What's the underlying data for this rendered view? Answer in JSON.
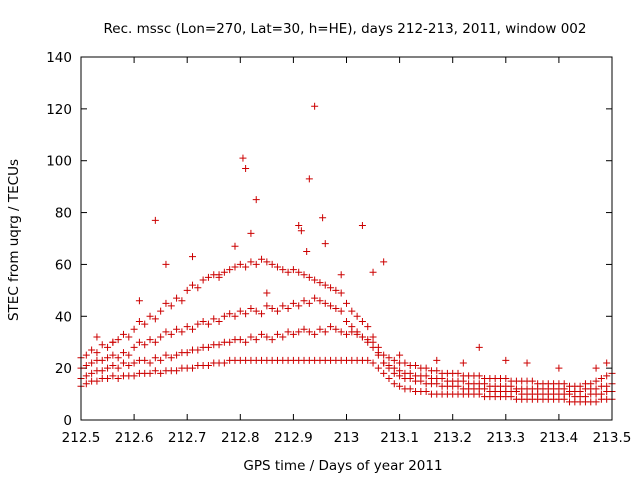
{
  "chart_data": {
    "type": "scatter",
    "title": "Rec. mssc (Lon=270, Lat=30, h=HE), days 212-213, 2011, window 002",
    "xlabel": "GPS time / Days of year 2011",
    "ylabel": "STEC from uqrg / TECUs",
    "xlim": [
      212.5,
      213.5
    ],
    "ylim": [
      0,
      140
    ],
    "xticks": [
      212.5,
      212.6,
      212.7,
      212.8,
      212.9,
      213,
      213.1,
      213.2,
      213.3,
      213.4,
      213.5
    ],
    "xtick_labels": [
      "212.5",
      "212.6",
      "212.7",
      "212.8",
      "212.9",
      "213",
      "213.1",
      "213.2",
      "213.3",
      "213.4",
      "213.5"
    ],
    "yticks": [
      0,
      20,
      40,
      60,
      80,
      100,
      120,
      140
    ],
    "ytick_labels": [
      "0",
      "20",
      "40",
      "60",
      "80",
      "100",
      "120",
      "140"
    ],
    "grid": false,
    "legend": "none",
    "marker": "plus",
    "color": "#cc0000",
    "series": [
      {
        "x": [
          212.5,
          212.51,
          212.52,
          212.53,
          212.54,
          212.55,
          212.56,
          212.57,
          212.58,
          212.59,
          212.6,
          212.61,
          212.62,
          212.63,
          212.64,
          212.65,
          212.66,
          212.67,
          212.68,
          212.69,
          212.7,
          212.71,
          212.72,
          212.73,
          212.74,
          212.75,
          212.76,
          212.77,
          212.78,
          212.79,
          212.8,
          212.81,
          212.82,
          212.83,
          212.84,
          212.85,
          212.86,
          212.87,
          212.88,
          212.89,
          212.9,
          212.91,
          212.92,
          212.93,
          212.94,
          212.95,
          212.96,
          212.97,
          212.98,
          212.99,
          213.0,
          213.01,
          213.02,
          213.03,
          213.04,
          213.05,
          213.06,
          213.07,
          213.08,
          213.09,
          213.1,
          213.11,
          213.12,
          213.13,
          213.14,
          213.15,
          213.16,
          213.17,
          213.18,
          213.19,
          213.2,
          213.21,
          213.22,
          213.23,
          213.24,
          213.25,
          213.26,
          213.27,
          213.28,
          213.29,
          213.3,
          213.31,
          213.32,
          213.33,
          213.34,
          213.35,
          213.36,
          213.37,
          213.38,
          213.39,
          213.4,
          213.41,
          213.42,
          213.43,
          213.44,
          213.45,
          213.46,
          213.47,
          213.48,
          213.49,
          213.5
        ],
        "y": [
          13,
          14,
          15,
          15,
          16,
          16,
          17,
          16,
          17,
          17,
          17,
          18,
          18,
          18,
          19,
          18,
          19,
          19,
          19,
          20,
          20,
          20,
          21,
          21,
          21,
          22,
          22,
          22,
          23,
          23,
          23,
          23,
          23,
          23,
          23,
          23,
          23,
          23,
          23,
          23,
          23,
          23,
          23,
          23,
          23,
          23,
          23,
          23,
          23,
          23,
          23,
          23,
          23,
          23,
          23,
          22,
          20,
          18,
          16,
          14,
          13,
          12,
          12,
          11,
          11,
          11,
          10,
          10,
          10,
          10,
          10,
          10,
          10,
          10,
          10,
          10,
          9,
          9,
          9,
          9,
          9,
          9,
          8,
          8,
          8,
          8,
          8,
          8,
          8,
          8,
          8,
          8,
          7,
          7,
          7,
          7,
          7,
          7,
          8,
          8,
          8
        ]
      },
      {
        "x": [
          212.5,
          212.51,
          212.52,
          212.53,
          212.54,
          212.55,
          212.56,
          212.57,
          212.58,
          212.59,
          212.6,
          212.61,
          212.62,
          212.63,
          212.64,
          212.65,
          212.66,
          212.67,
          212.68,
          212.69,
          212.7,
          212.71,
          212.72,
          212.73,
          212.74,
          212.75,
          212.76,
          212.77,
          212.78,
          212.79,
          212.8,
          212.81,
          212.82,
          212.83,
          212.84,
          212.85,
          212.86,
          212.87,
          212.88,
          212.89,
          212.9,
          212.91,
          212.92,
          212.93,
          212.94,
          212.95,
          212.96,
          212.97,
          212.98,
          212.99,
          213.0,
          213.01,
          213.02,
          213.03,
          213.04,
          213.05,
          213.06,
          213.07,
          213.08,
          213.09,
          213.1,
          213.11,
          213.12,
          213.13,
          213.14,
          213.15,
          213.16,
          213.17,
          213.18,
          213.19,
          213.2,
          213.21,
          213.22,
          213.23,
          213.24,
          213.25,
          213.26,
          213.27,
          213.28,
          213.29,
          213.3,
          213.31,
          213.32,
          213.33,
          213.34,
          213.35,
          213.36,
          213.37,
          213.38,
          213.39,
          213.4,
          213.41,
          213.42,
          213.43,
          213.44,
          213.45,
          213.46,
          213.47,
          213.48,
          213.49,
          213.5
        ],
        "y": [
          16,
          17,
          18,
          19,
          19,
          20,
          21,
          20,
          22,
          21,
          22,
          23,
          23,
          22,
          24,
          23,
          25,
          24,
          25,
          26,
          26,
          27,
          27,
          28,
          28,
          29,
          29,
          30,
          30,
          31,
          31,
          30,
          32,
          31,
          33,
          32,
          31,
          33,
          32,
          34,
          33,
          34,
          35,
          34,
          33,
          35,
          34,
          36,
          35,
          34,
          33,
          34,
          33,
          32,
          31,
          30,
          26,
          22,
          20,
          18,
          17,
          16,
          16,
          15,
          15,
          14,
          14,
          14,
          13,
          13,
          13,
          13,
          12,
          12,
          12,
          12,
          12,
          11,
          11,
          11,
          11,
          11,
          11,
          10,
          10,
          10,
          10,
          10,
          10,
          10,
          10,
          10,
          10,
          9,
          9,
          9,
          10,
          10,
          10,
          11,
          11
        ]
      },
      {
        "x": [
          212.5,
          212.51,
          212.52,
          212.53,
          212.54,
          212.55,
          212.56,
          212.57,
          212.58,
          212.59,
          212.6,
          212.61,
          212.62,
          212.63,
          212.64,
          212.65,
          212.66,
          212.67,
          212.68,
          212.69,
          212.7,
          212.71,
          212.72,
          212.73,
          212.74,
          212.75,
          212.76,
          212.77,
          212.78,
          212.79,
          212.8,
          212.81,
          212.82,
          212.83,
          212.84,
          212.85,
          212.86,
          212.87,
          212.88,
          212.89,
          212.9,
          212.91,
          212.92,
          212.93,
          212.94,
          212.95,
          212.96,
          212.97,
          212.98,
          212.99,
          213.0,
          213.01,
          213.02,
          213.03,
          213.04,
          213.05,
          213.06,
          213.07,
          213.08,
          213.09,
          213.1,
          213.11,
          213.12,
          213.13,
          213.14,
          213.15,
          213.16,
          213.17,
          213.18,
          213.19,
          213.2,
          213.21,
          213.22,
          213.23,
          213.24,
          213.25,
          213.26,
          213.27,
          213.28,
          213.29,
          213.3,
          213.31,
          213.32,
          213.33,
          213.34,
          213.35,
          213.36,
          213.37,
          213.38,
          213.39,
          213.4,
          213.41,
          213.42,
          213.43,
          213.44,
          213.45,
          213.46,
          213.47,
          213.48,
          213.49,
          213.5
        ],
        "y": [
          20,
          21,
          22,
          23,
          23,
          24,
          25,
          24,
          26,
          25,
          28,
          30,
          29,
          31,
          30,
          32,
          34,
          33,
          35,
          34,
          36,
          35,
          37,
          38,
          37,
          39,
          38,
          40,
          41,
          40,
          42,
          41,
          43,
          42,
          41,
          44,
          43,
          42,
          44,
          43,
          45,
          44,
          46,
          45,
          47,
          46,
          45,
          44,
          43,
          42,
          38,
          36,
          34,
          32,
          30,
          28,
          25,
          22,
          21,
          20,
          19,
          18,
          18,
          17,
          17,
          17,
          16,
          16,
          16,
          15,
          15,
          15,
          15,
          14,
          14,
          14,
          14,
          13,
          13,
          13,
          13,
          13,
          12,
          12,
          12,
          12,
          12,
          12,
          12,
          12,
          12,
          12,
          11,
          11,
          11,
          12,
          12,
          12,
          13,
          13,
          14
        ]
      },
      {
        "x": [
          212.5,
          212.51,
          212.52,
          212.53,
          212.54,
          212.55,
          212.56,
          212.57,
          212.58,
          212.59,
          212.6,
          212.61,
          212.62,
          212.63,
          212.64,
          212.65,
          212.66,
          212.67,
          212.68,
          212.69,
          212.7,
          212.71,
          212.72,
          212.73,
          212.74,
          212.75,
          212.76,
          212.77,
          212.78,
          212.79,
          212.8,
          212.81,
          212.82,
          212.83,
          212.84,
          212.85,
          212.86,
          212.87,
          212.88,
          212.89,
          212.9,
          212.91,
          212.92,
          212.93,
          212.94,
          212.95,
          212.96,
          212.97,
          212.98,
          212.99,
          213.0,
          213.01,
          213.02,
          213.03,
          213.04,
          213.05,
          213.06,
          213.07,
          213.08,
          213.09,
          213.1,
          213.11,
          213.12,
          213.13,
          213.14,
          213.15,
          213.16,
          213.17,
          213.18,
          213.19,
          213.2,
          213.21,
          213.22,
          213.23,
          213.24,
          213.25,
          213.26,
          213.27,
          213.28,
          213.29,
          213.3,
          213.31,
          213.32,
          213.33,
          213.34,
          213.35,
          213.36,
          213.37,
          213.38,
          213.39,
          213.4,
          213.41,
          213.42,
          213.43,
          213.44,
          213.45,
          213.46,
          213.47,
          213.48,
          213.49,
          213.5
        ],
        "y": [
          24,
          25,
          27,
          26,
          29,
          28,
          30,
          31,
          33,
          32,
          35,
          38,
          37,
          40,
          39,
          42,
          45,
          44,
          47,
          46,
          50,
          52,
          51,
          54,
          55,
          56,
          55,
          57,
          58,
          59,
          60,
          59,
          61,
          60,
          62,
          61,
          60,
          59,
          58,
          57,
          58,
          57,
          56,
          55,
          54,
          53,
          52,
          51,
          50,
          49,
          45,
          42,
          40,
          38,
          36,
          32,
          28,
          25,
          24,
          23,
          22,
          22,
          21,
          21,
          20,
          20,
          19,
          19,
          18,
          18,
          18,
          18,
          17,
          17,
          17,
          17,
          16,
          16,
          16,
          16,
          16,
          15,
          15,
          15,
          15,
          15,
          14,
          14,
          14,
          14,
          14,
          14,
          13,
          13,
          13,
          14,
          14,
          15,
          16,
          17,
          18
        ]
      },
      {
        "x": [
          212.53,
          212.56,
          212.61,
          212.64,
          212.66,
          212.71,
          212.76,
          212.79,
          212.805,
          212.81,
          212.82,
          212.83,
          212.85,
          212.91,
          212.915,
          212.925,
          212.93,
          212.94,
          212.955,
          212.96,
          212.99,
          213.03,
          213.05,
          213.07,
          213.1,
          213.17,
          213.22,
          213.25,
          213.3,
          213.34,
          213.4,
          213.47,
          213.49
        ],
        "y": [
          32,
          30,
          46,
          77,
          60,
          63,
          56,
          67,
          101,
          97,
          72,
          85,
          49,
          75,
          73,
          65,
          93,
          121,
          78,
          68,
          56,
          75,
          57,
          61,
          25,
          23,
          22,
          28,
          23,
          22,
          20,
          20,
          22
        ]
      }
    ]
  }
}
